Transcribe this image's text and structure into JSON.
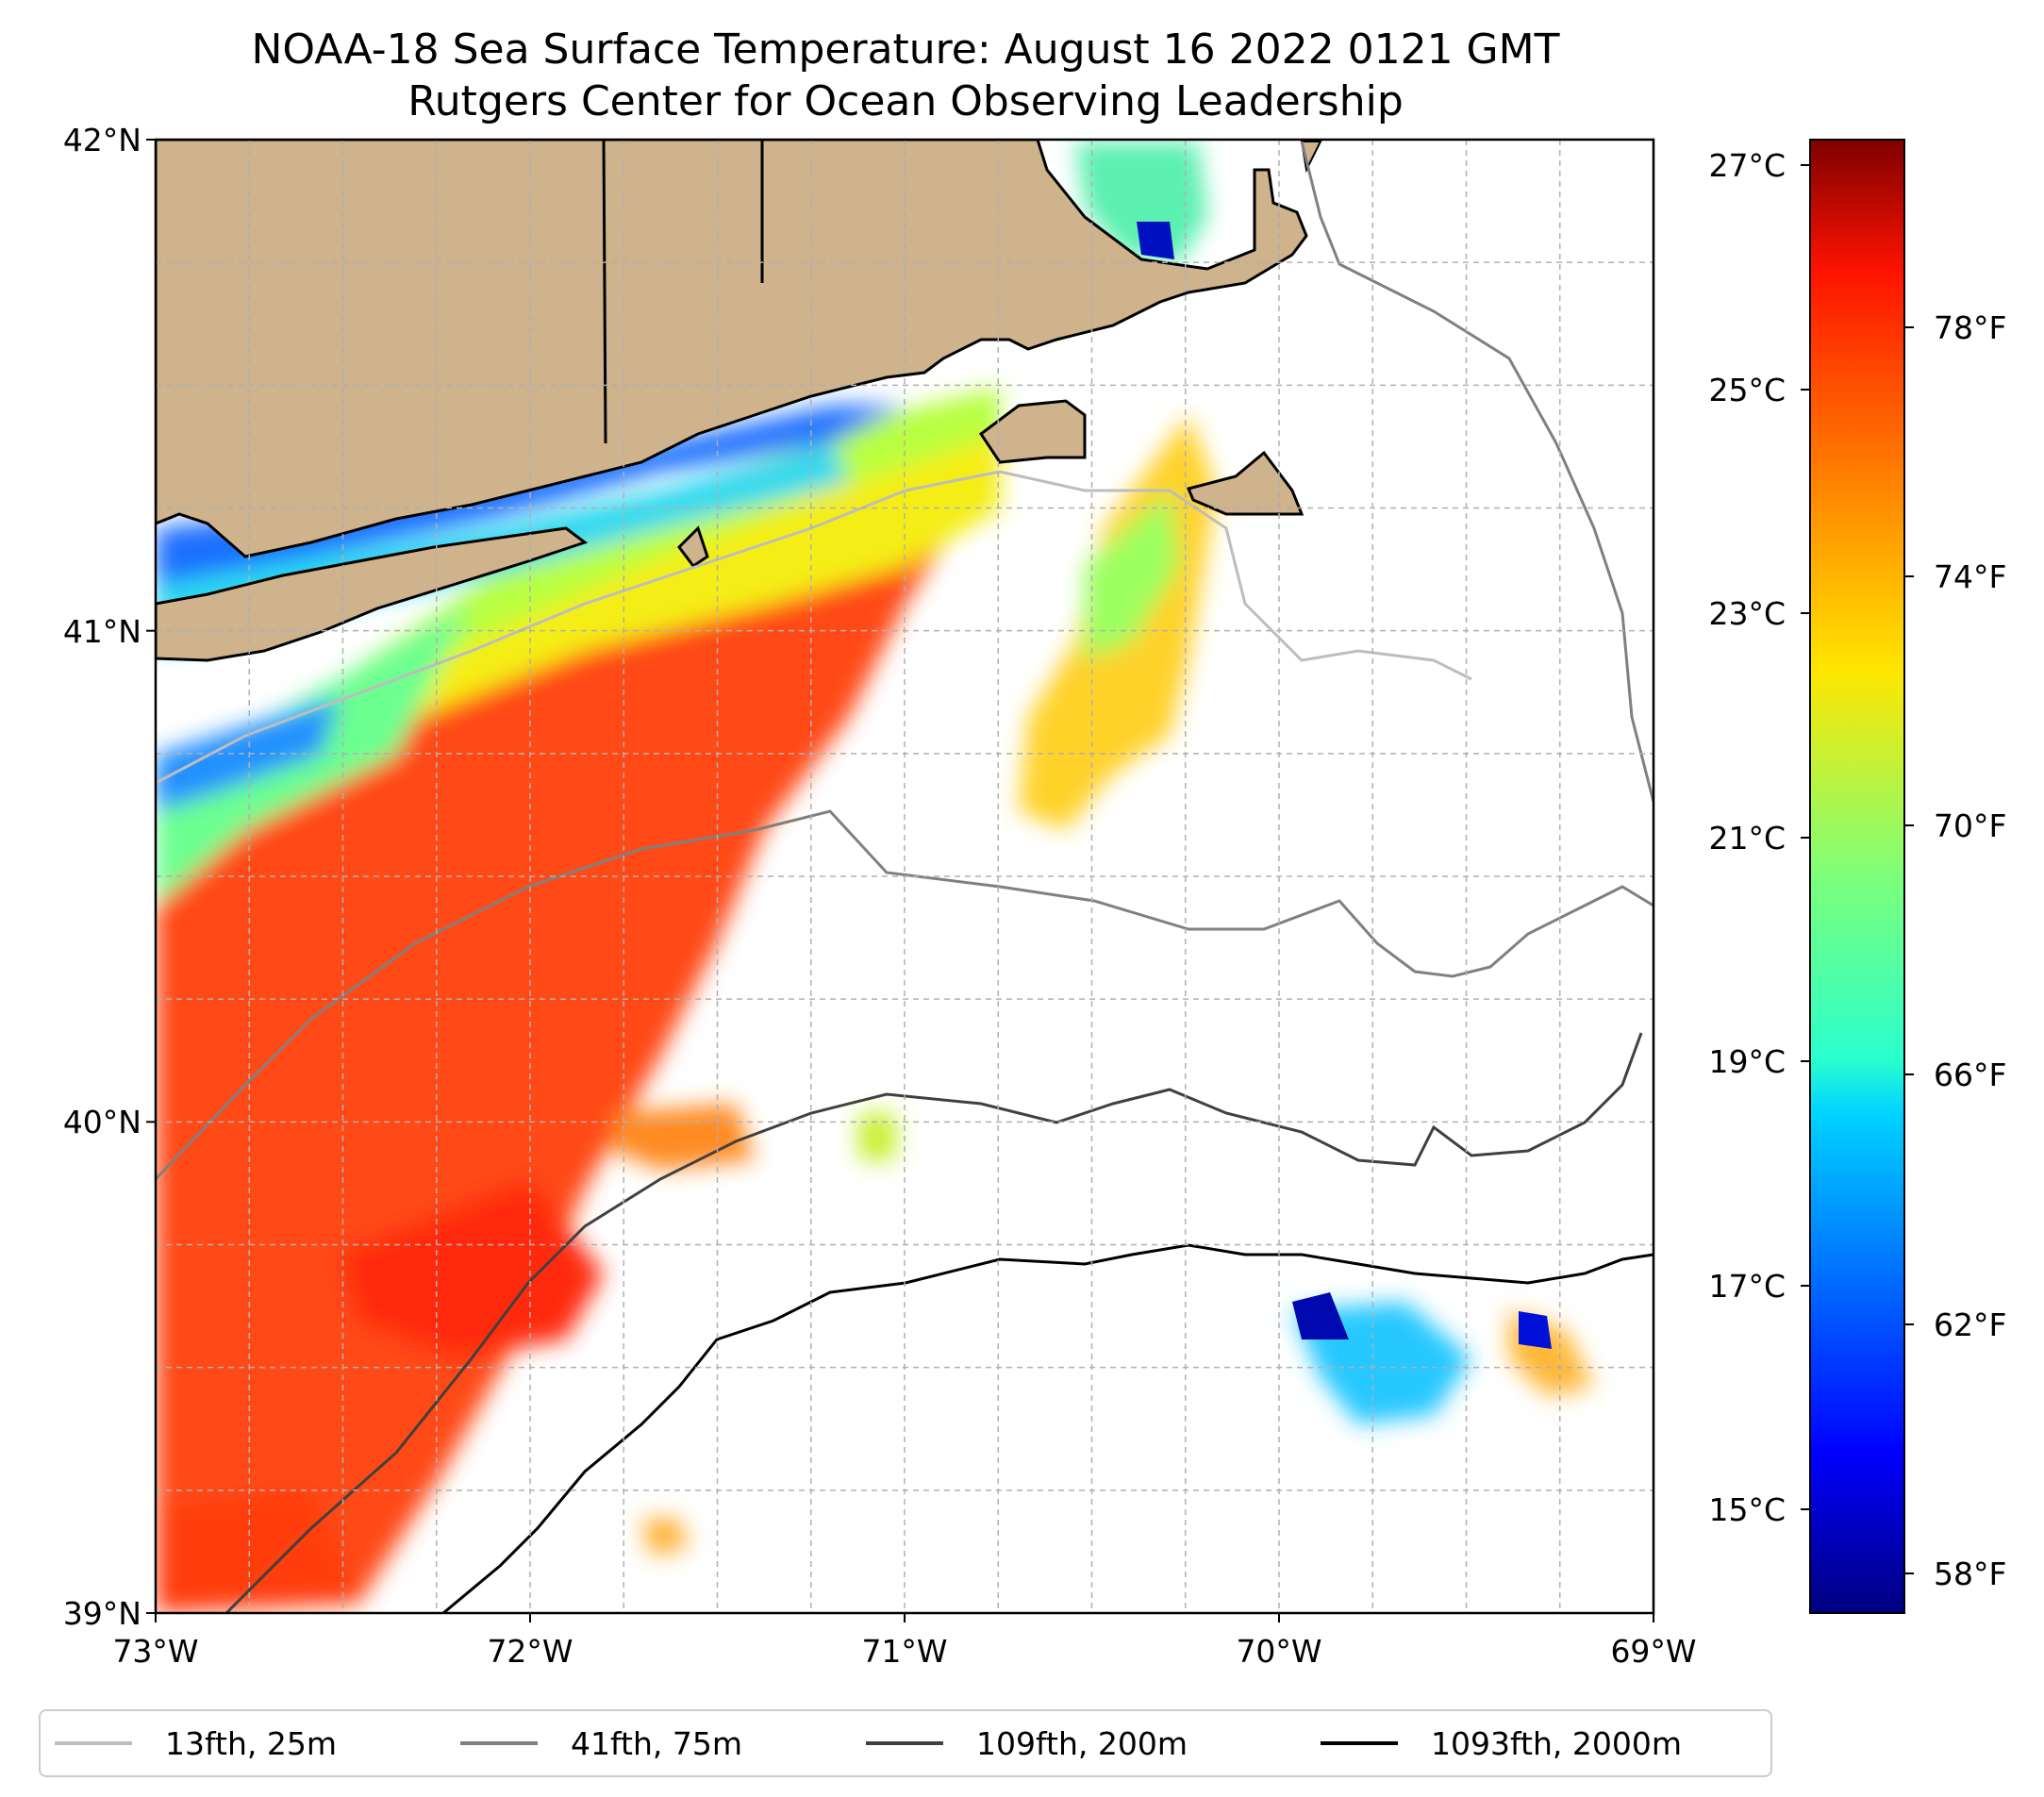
{
  "title": {
    "line1": "NOAA-18 Sea Surface Temperature: August 16 2022 0121 GMT",
    "line2": "Rutgers Center for Ocean Observing Leadership"
  },
  "map": {
    "lon_range": [
      -73,
      -69
    ],
    "lat_range": [
      39,
      42
    ],
    "lon_ticks": [
      {
        "value": -73,
        "label": "73°W"
      },
      {
        "value": -72,
        "label": "72°W"
      },
      {
        "value": -71,
        "label": "71°W"
      },
      {
        "value": -70,
        "label": "70°W"
      },
      {
        "value": -69,
        "label": "69°W"
      }
    ],
    "lat_ticks": [
      {
        "value": 42,
        "label": "42°N"
      },
      {
        "value": 41,
        "label": "41°N"
      },
      {
        "value": 40,
        "label": "40°N"
      },
      {
        "value": 39,
        "label": "39°N"
      }
    ],
    "grid": true,
    "land_color": "#cfb38d",
    "colormap": "jet"
  },
  "colorbar": {
    "celsius_ticks": [
      "27°C",
      "25°C",
      "23°C",
      "21°C",
      "19°C",
      "17°C",
      "15°C"
    ],
    "fahrenheit_ticks": [
      "78°F",
      "74°F",
      "70°F",
      "66°F",
      "62°F",
      "58°F"
    ]
  },
  "legend": {
    "placement": "bottom",
    "items": [
      {
        "label": "13fth, 25m",
        "color": "#bdbdbd"
      },
      {
        "label": "41fth, 75m",
        "color": "#808080"
      },
      {
        "label": "109fth, 200m",
        "color": "#404040"
      },
      {
        "label": "1093fth, 2000m",
        "color": "#000000"
      }
    ]
  }
}
